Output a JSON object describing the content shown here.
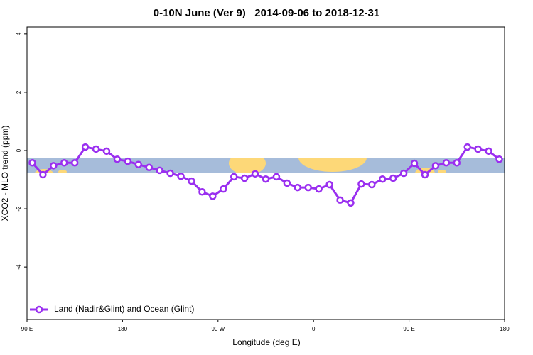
{
  "chart_data": {
    "type": "line",
    "title": "0-10N June (Ver 9)   2014-09-06 to 2018-12-31",
    "x_label": "Longitude (deg E)",
    "y_label": "XCO2 - MLO trend (ppm)",
    "x": [
      95,
      105,
      115,
      125,
      135,
      145,
      155,
      165,
      175,
      185,
      195,
      205,
      215,
      225,
      235,
      245,
      255,
      265,
      275,
      285,
      295,
      305,
      315,
      325,
      335,
      345,
      355,
      365,
      375,
      385,
      395,
      405,
      415,
      425,
      435,
      445,
      455,
      465,
      475,
      485,
      495,
      505,
      515,
      525,
      535
    ],
    "series": [
      {
        "name": "Land (Nadir&Glint) and Ocean (Glint)",
        "color": "#9a2ff0",
        "values": [
          -0.42,
          -0.83,
          -0.52,
          -0.42,
          -0.42,
          0.12,
          0.05,
          -0.02,
          -0.3,
          -0.37,
          -0.48,
          -0.58,
          -0.68,
          -0.78,
          -0.88,
          -1.05,
          -1.42,
          -1.57,
          -1.32,
          -0.9,
          -0.95,
          -0.8,
          -0.98,
          -0.9,
          -1.12,
          -1.27,
          -1.27,
          -1.32,
          -1.17,
          -1.7,
          -1.8,
          -1.15,
          -1.17,
          -0.98,
          -0.95,
          -0.78,
          -0.44,
          -0.83,
          -0.52,
          -0.42,
          -0.42,
          0.12,
          0.05,
          -0.02,
          -0.3
        ]
      }
    ],
    "xlim": [
      90,
      540
    ],
    "xticks": [
      {
        "value": 90,
        "label": "90 E"
      },
      180,
      {
        "value": 270,
        "label": "90 W"
      },
      {
        "value": 360,
        "label": "0"
      },
      {
        "value": 450,
        "label": "90 E"
      },
      {
        "value": 540,
        "label": "180"
      }
    ],
    "ylim": [
      -5.8,
      4.24
    ],
    "yticks": [
      -4,
      -2,
      0,
      2,
      4
    ],
    "legend": "bottom-left"
  }
}
